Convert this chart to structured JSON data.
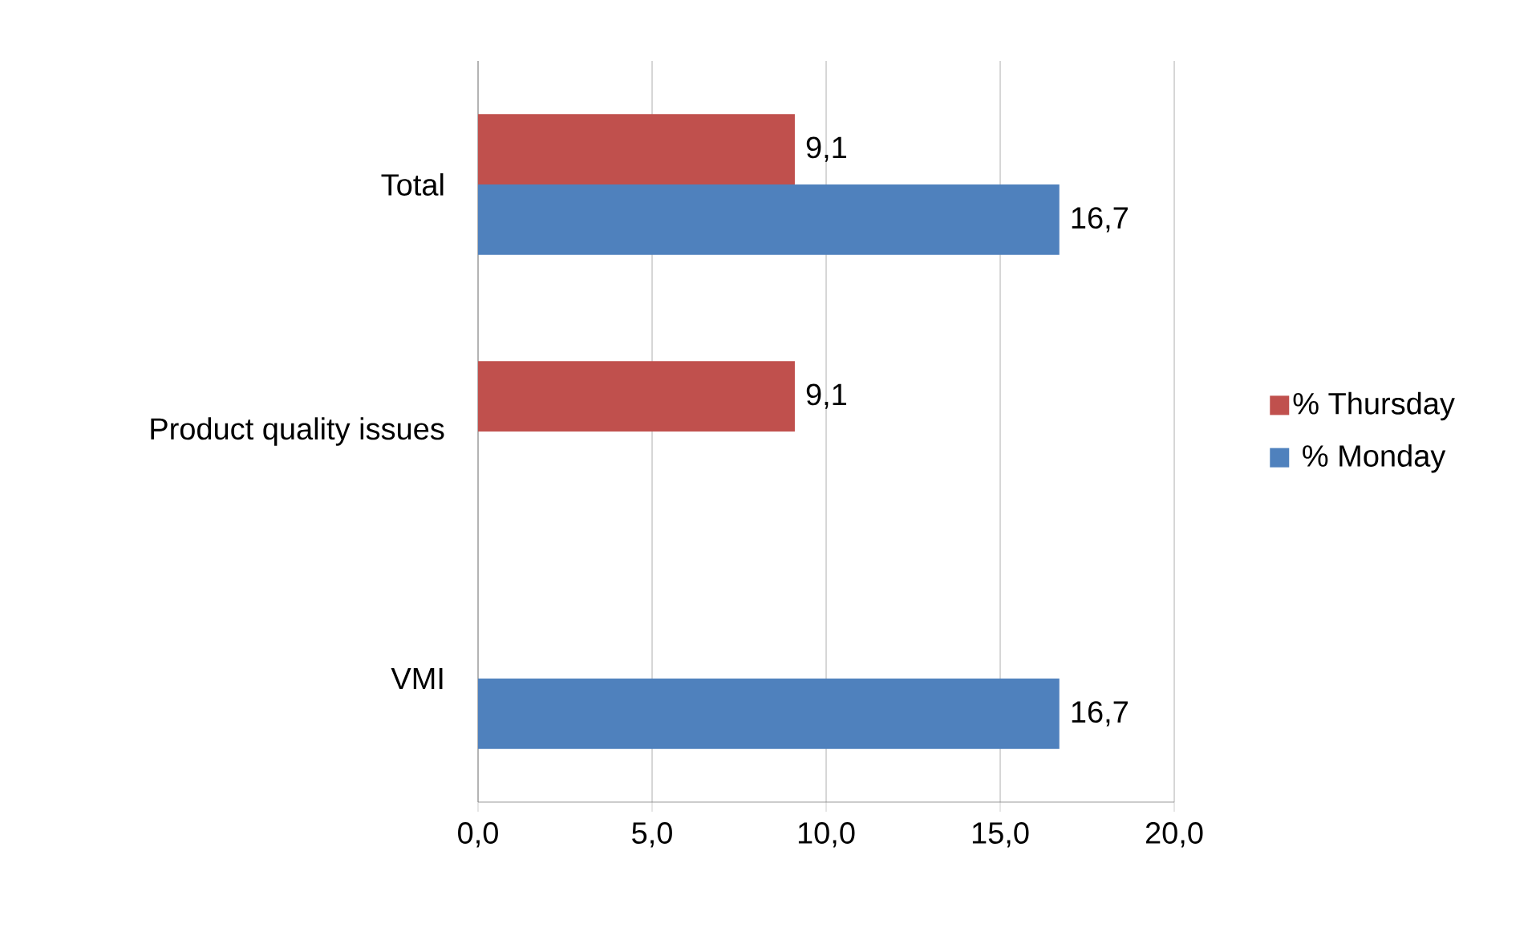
{
  "chart_data": {
    "type": "bar",
    "orientation": "horizontal",
    "categories": [
      "Total",
      "Product quality issues",
      "VMI"
    ],
    "series": [
      {
        "name": "% Thursday",
        "color": "#c0504d",
        "values": [
          9.1,
          9.1,
          null
        ],
        "value_labels": [
          "9,1",
          "9,1",
          null
        ]
      },
      {
        "name": "% Monday",
        "color": "#4f81bd",
        "values": [
          16.7,
          null,
          16.7
        ],
        "value_labels": [
          "16,7",
          null,
          "16,7"
        ]
      }
    ],
    "xlim": [
      0,
      20
    ],
    "xticks": [
      {
        "value": 0,
        "label": "0,0"
      },
      {
        "value": 5,
        "label": "5,0"
      },
      {
        "value": 10,
        "label": "10,0"
      },
      {
        "value": 15,
        "label": "15,0"
      },
      {
        "value": 20,
        "label": "20,0"
      }
    ],
    "grid": "x",
    "legend": "right"
  }
}
